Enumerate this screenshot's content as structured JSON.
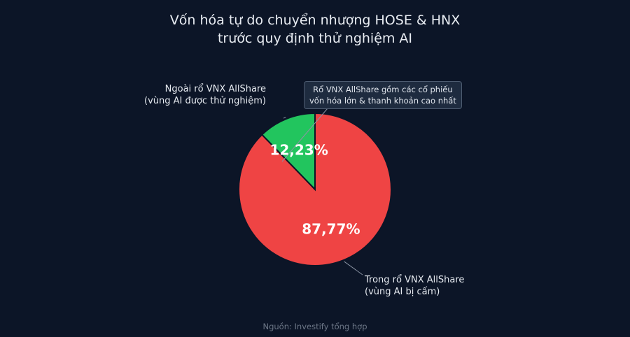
{
  "chart_data": {
    "type": "pie",
    "title": [
      "Vốn hóa tự do chuyển nhượng HOSE & HNX",
      "trước quy định thử nghiệm AI"
    ],
    "slices": [
      {
        "label_line1": "Ngoài rổ VNX AllShare",
        "label_line2": "(vùng AI được thử nghiệm)",
        "value": 12.23,
        "value_label": "12,23%",
        "color": "#22c55e"
      },
      {
        "label_line1": "Trong rổ VNX AllShare",
        "label_line2": "(vùng AI bị cấm)",
        "value": 87.77,
        "value_label": "87,77%",
        "color": "#ef4444"
      }
    ],
    "annotation": [
      "Rổ VNX AllShare gồm các cổ phiếu",
      "vốn hóa lớn & thanh khoản cao nhất"
    ],
    "start_angle": "top",
    "direction": "counterclockwise",
    "explode": "none"
  },
  "source": "Nguồn: Investify tổng hợp",
  "colors": {
    "background": "#0c1527",
    "edge": "#0c1527"
  }
}
